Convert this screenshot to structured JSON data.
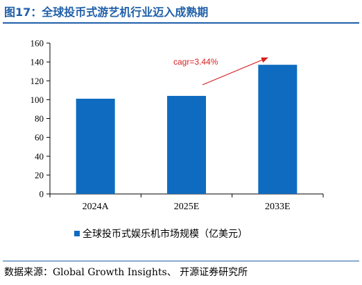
{
  "figure": {
    "title": "图17：全球投币式游艺机行业迈入成熟期",
    "source": "数据来源：Global Growth Insights、 开源证券研究所"
  },
  "chart_data": {
    "type": "bar",
    "categories": [
      "2024A",
      "2025E",
      "2033E"
    ],
    "series": [
      {
        "name": "全球投币式娱乐机市场规模（亿美元）",
        "values": [
          101,
          104,
          137
        ],
        "color": "#0f6bbf"
      }
    ],
    "ylim": [
      0,
      160
    ],
    "yticks": [
      0,
      20,
      40,
      60,
      80,
      100,
      120,
      140,
      160
    ],
    "grid": false,
    "legend_position": "bottom",
    "annotation": {
      "text": "cagr=3.44%",
      "color": "#d62020",
      "arrow": true
    }
  }
}
